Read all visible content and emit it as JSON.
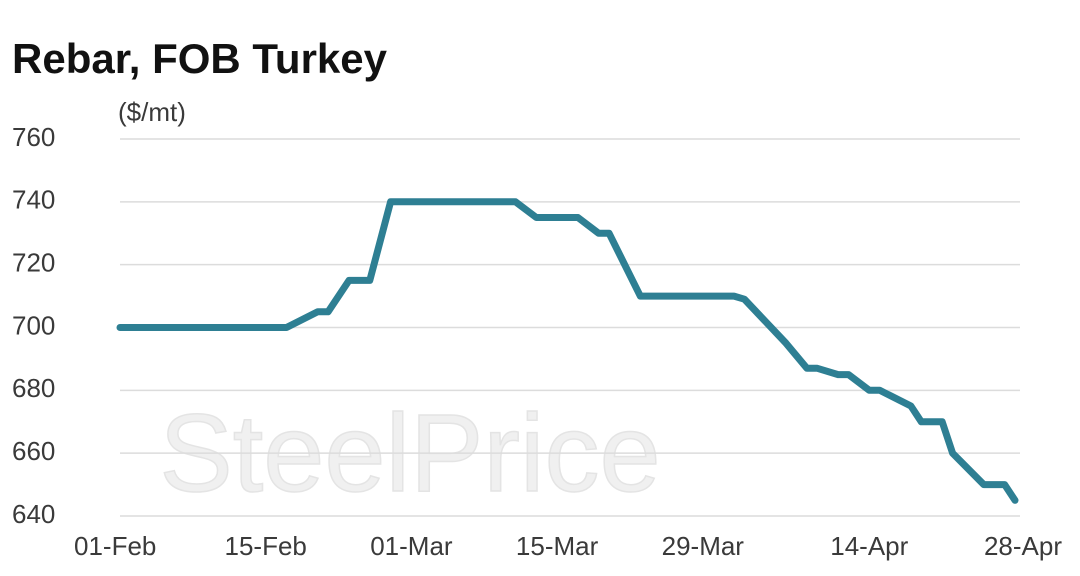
{
  "chart_data": {
    "type": "line",
    "title": "Rebar, FOB Turkey",
    "y_label": "($/mt)",
    "watermark": "SteelPrice",
    "x": [
      "01-Feb",
      "17-Feb",
      "20-Feb",
      "21-Feb",
      "23-Feb",
      "25-Feb",
      "27-Feb",
      "11-Mar",
      "13-Mar",
      "17-Mar",
      "19-Mar",
      "20-Mar",
      "23-Mar",
      "01-Apr",
      "02-Apr",
      "06-Apr",
      "08-Apr",
      "09-Apr",
      "11-Apr",
      "12-Apr",
      "14-Apr",
      "15-Apr",
      "18-Apr",
      "19-Apr",
      "21-Apr",
      "22-Apr",
      "25-Apr",
      "27-Apr",
      "28-Apr"
    ],
    "series": [
      {
        "name": "Rebar, FOB Turkey",
        "color": "#2e7f93",
        "values": [
          700,
          700,
          705,
          705,
          715,
          715,
          740,
          740,
          735,
          735,
          730,
          730,
          710,
          710,
          709,
          695,
          687,
          687,
          685,
          685,
          680,
          680,
          675,
          670,
          670,
          660,
          650,
          650,
          645
        ]
      }
    ],
    "xlim": [
      "01-Feb",
      "28-Apr"
    ],
    "xticks": [
      "01-Feb",
      "15-Feb",
      "01-Mar",
      "15-Mar",
      "29-Mar",
      "14-Apr",
      "28-Apr"
    ],
    "ylim": [
      640,
      760
    ],
    "yticks": [
      640,
      660,
      680,
      700,
      720,
      740,
      760
    ],
    "grid": true
  }
}
